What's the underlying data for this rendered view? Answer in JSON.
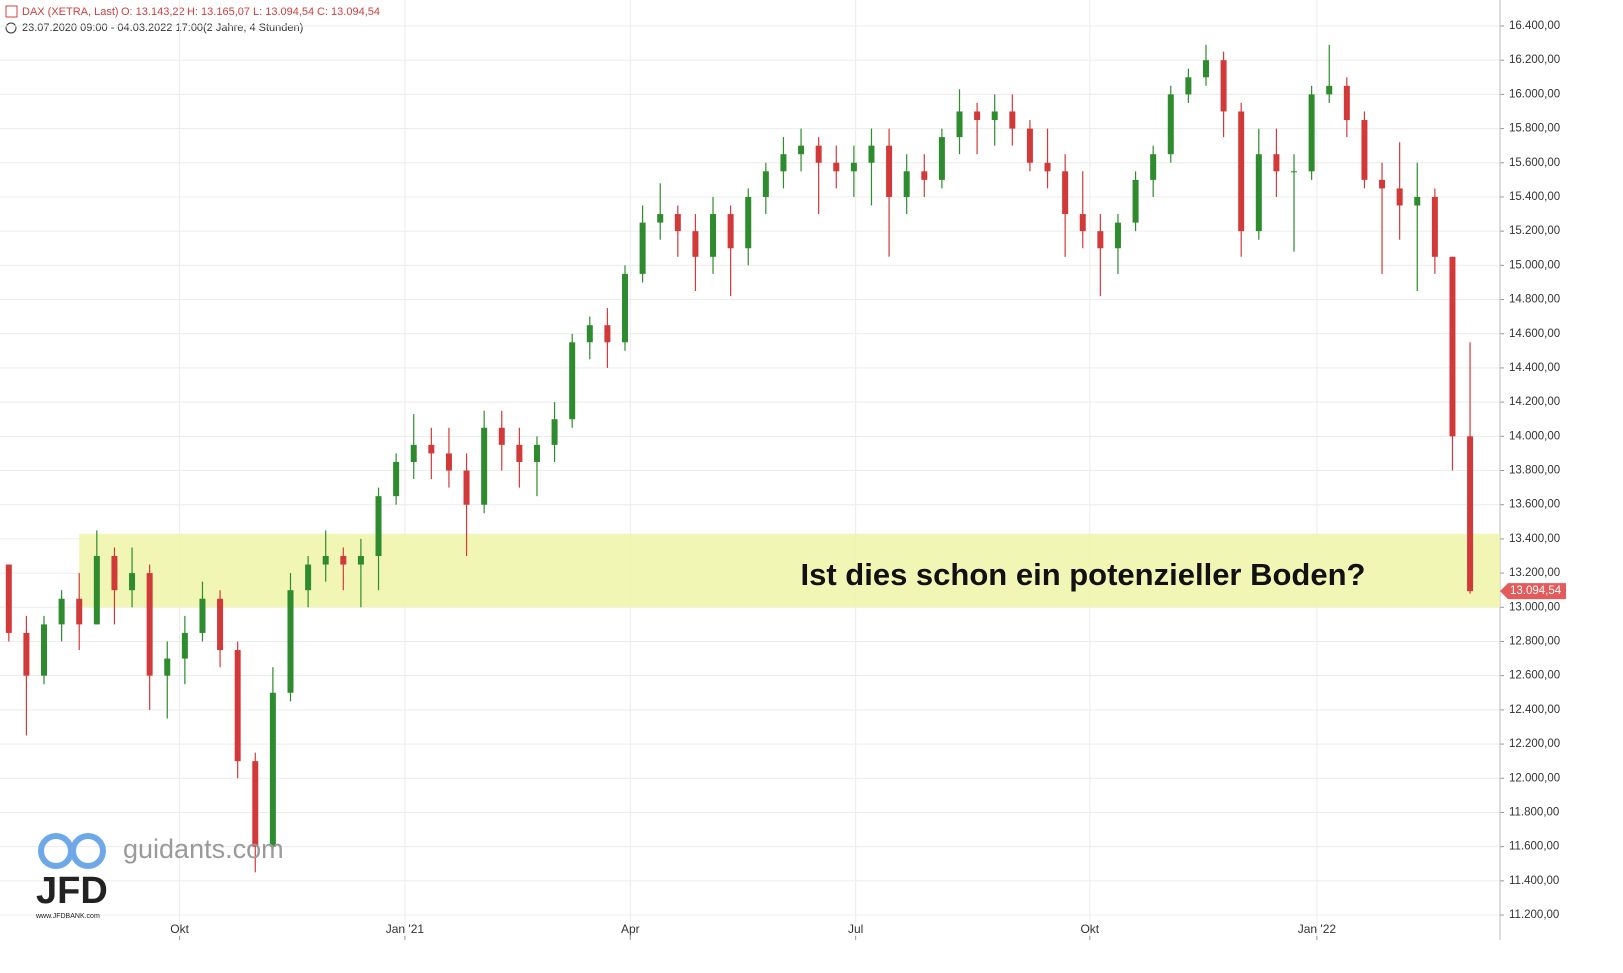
{
  "chart_data": {
    "type": "candlestick",
    "header": {
      "instrument": "DAX (XETRA, Last)",
      "open": "O: 13.143,22",
      "high": "H: 13.165,07",
      "low": "L: 13.094,54",
      "close": "C: 13.094,54",
      "range": "23.07.2020 09:00 - 04.03.2022 17:00",
      "period": "(2 Jahre, 4 Stunden)"
    },
    "annotation": "Ist dies schon ein potenzieller Boden?",
    "zone": {
      "ylim": [
        13000,
        13430
      ],
      "x_start": 4.0,
      "color": "#eef5a8"
    },
    "last_price": {
      "value": 13094.54,
      "label": "13.094,54"
    },
    "watermark": {
      "site": "guidants.com",
      "brand": "JFD",
      "url": "www.JFDBANK.com"
    },
    "up_color": "#2e8b2e",
    "down_color": "#d23a3a",
    "grid": true,
    "xlim": [
      -0.5,
      84.7
    ],
    "xticks": [
      {
        "value": 9.7,
        "label": "Okt"
      },
      {
        "value": 22.5,
        "label": "Jan '21"
      },
      {
        "value": 35.3,
        "label": "Apr"
      },
      {
        "value": 48.1,
        "label": "Jul"
      },
      {
        "value": 61.4,
        "label": "Okt"
      },
      {
        "value": 74.3,
        "label": "Jan '22"
      }
    ],
    "ylim": [
      11054,
      16552
    ],
    "yticks": [
      {
        "value": 11200,
        "label": "11.200,00"
      },
      {
        "value": 11400,
        "label": "11.400,00"
      },
      {
        "value": 11600,
        "label": "11.600,00"
      },
      {
        "value": 11800,
        "label": "11.800,00"
      },
      {
        "value": 12000,
        "label": "12.000,00"
      },
      {
        "value": 12200,
        "label": "12.200,00"
      },
      {
        "value": 12400,
        "label": "12.400,00"
      },
      {
        "value": 12600,
        "label": "12.600,00"
      },
      {
        "value": 12800,
        "label": "12.800,00"
      },
      {
        "value": 13000,
        "label": "13.000,00"
      },
      {
        "value": 13200,
        "label": "13.200,00"
      },
      {
        "value": 13400,
        "label": "13.400,00"
      },
      {
        "value": 13600,
        "label": "13.600,00"
      },
      {
        "value": 13800,
        "label": "13.800,00"
      },
      {
        "value": 14000,
        "label": "14.000,00"
      },
      {
        "value": 14200,
        "label": "14.200,00"
      },
      {
        "value": 14400,
        "label": "14.400,00"
      },
      {
        "value": 14600,
        "label": "14.600,00"
      },
      {
        "value": 14800,
        "label": "14.800,00"
      },
      {
        "value": 15000,
        "label": "15.000,00"
      },
      {
        "value": 15200,
        "label": "15.200,00"
      },
      {
        "value": 15400,
        "label": "15.400,00"
      },
      {
        "value": 15600,
        "label": "15.600,00"
      },
      {
        "value": 15800,
        "label": "15.800,00"
      },
      {
        "value": 16000,
        "label": "16.000,00"
      },
      {
        "value": 16200,
        "label": "16.200,00"
      },
      {
        "value": 16400,
        "label": "16.400,00"
      }
    ],
    "x": [
      0,
      1,
      2,
      3,
      4,
      5,
      6,
      7,
      8,
      9,
      10,
      11,
      12,
      13,
      14,
      15,
      16,
      17,
      18,
      19,
      20,
      21,
      22,
      23,
      24,
      25,
      26,
      27,
      28,
      29,
      30,
      31,
      32,
      33,
      34,
      35,
      36,
      37,
      38,
      39,
      40,
      41,
      42,
      43,
      44,
      45,
      46,
      47,
      48,
      49,
      50,
      51,
      52,
      53,
      54,
      55,
      56,
      57,
      58,
      59,
      60,
      61,
      62,
      63,
      64,
      65,
      66,
      67,
      68,
      69,
      70,
      71,
      72,
      73,
      74,
      75,
      76,
      77,
      78,
      79,
      80,
      81,
      82,
      83
    ],
    "open": [
      13250,
      12850,
      12600,
      12900,
      13050,
      12900,
      13300,
      13100,
      13200,
      12600,
      12700,
      12850,
      13050,
      12750,
      12100,
      11600,
      12500,
      13100,
      13250,
      13300,
      13250,
      13300,
      13650,
      13850,
      13950,
      13900,
      13800,
      13600,
      14050,
      13950,
      13850,
      13950,
      14100,
      14550,
      14650,
      14550,
      14950,
      15250,
      15300,
      15200,
      15050,
      15300,
      15100,
      15400,
      15550,
      15650,
      15700,
      15600,
      15550,
      15600,
      15700,
      15400,
      15550,
      15500,
      15750,
      15900,
      15850,
      15900,
      15800,
      15600,
      15550,
      15300,
      15200,
      15100,
      15250,
      15500,
      15650,
      16000,
      16100,
      16200,
      15900,
      15200,
      15650,
      15550,
      15550,
      16000,
      16050,
      15850,
      15500,
      15450,
      15350,
      15400,
      15050,
      14000
    ],
    "high": [
      13250,
      12950,
      12950,
      13100,
      13200,
      13450,
      13350,
      13350,
      13250,
      12800,
      12950,
      13150,
      13100,
      12800,
      12150,
      12650,
      13200,
      13300,
      13450,
      13350,
      13400,
      13700,
      13900,
      14130,
      14050,
      14050,
      13900,
      14150,
      14150,
      14050,
      14000,
      14200,
      14600,
      14700,
      14750,
      15000,
      15350,
      15480,
      15350,
      15300,
      15400,
      15350,
      15450,
      15600,
      15750,
      15800,
      15750,
      15700,
      15700,
      15800,
      15800,
      15650,
      15650,
      15800,
      16030,
      15950,
      16000,
      16000,
      15850,
      15800,
      15650,
      15550,
      15300,
      15300,
      15550,
      15700,
      16050,
      16150,
      16290,
      16250,
      15950,
      15800,
      15800,
      15650,
      16050,
      16290,
      16100,
      15900,
      15600,
      15720,
      15600,
      15450,
      15050,
      14550
    ],
    "low": [
      12800,
      12250,
      12550,
      12800,
      12750,
      12900,
      12900,
      13000,
      12400,
      12350,
      12550,
      12800,
      12650,
      12000,
      11450,
      11550,
      12450,
      13000,
      13150,
      13100,
      13000,
      13100,
      13600,
      13750,
      13750,
      13700,
      13300,
      13550,
      13800,
      13700,
      13650,
      13850,
      14050,
      14450,
      14400,
      14500,
      14900,
      15150,
      15050,
      14850,
      14950,
      14820,
      15000,
      15300,
      15450,
      15550,
      15300,
      15450,
      15400,
      15350,
      15050,
      15300,
      15400,
      15450,
      15650,
      15650,
      15700,
      15700,
      15550,
      15450,
      15050,
      15100,
      14820,
      14950,
      15200,
      15400,
      15600,
      15950,
      16050,
      15750,
      15050,
      15150,
      15400,
      15080,
      15500,
      15950,
      15750,
      15450,
      14950,
      15150,
      14850,
      14950,
      13800,
      13080
    ],
    "close": [
      12850,
      12600,
      12900,
      13050,
      12900,
      13300,
      13100,
      13200,
      12600,
      12700,
      12850,
      13050,
      12750,
      12100,
      11600,
      12500,
      13100,
      13250,
      13300,
      13250,
      13300,
      13650,
      13850,
      13950,
      13900,
      13800,
      13600,
      14050,
      13950,
      13850,
      13950,
      14100,
      14550,
      14650,
      14550,
      14950,
      15250,
      15300,
      15200,
      15050,
      15300,
      15100,
      15400,
      15550,
      15650,
      15700,
      15600,
      15550,
      15600,
      15700,
      15400,
      15550,
      15500,
      15750,
      15900,
      15850,
      15900,
      15800,
      15600,
      15550,
      15300,
      15200,
      15100,
      15250,
      15500,
      15650,
      16000,
      16100,
      16200,
      15900,
      15200,
      15650,
      15550,
      15550,
      16000,
      16050,
      15850,
      15500,
      15450,
      15350,
      15400,
      15050,
      14000,
      13094.54
    ]
  }
}
